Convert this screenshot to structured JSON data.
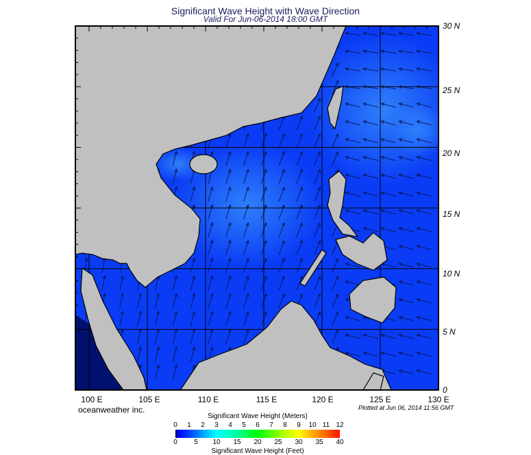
{
  "header": {
    "title": "Significant Wave Height with Wave Direction",
    "subtitle": "Valid For Jun-06-2014 18:00 GMT"
  },
  "map": {
    "lat_labels": [
      "30 N",
      "25 N",
      "20 N",
      "15 N",
      "10 N",
      "5 N",
      "0"
    ],
    "lon_labels": [
      "100 E",
      "105 E",
      "110 E",
      "115 E",
      "120 E",
      "125 E",
      "130 E"
    ],
    "colors": {
      "land": "#c0c0c0",
      "ocean": "#0a3cf5",
      "ocean_light": "#2a78fa",
      "arrow": "#0a1450"
    }
  },
  "footer": {
    "credit": "oceanweather inc.",
    "plotted": "Plotted at Jun 06, 2014 11:56 GMT"
  },
  "colorbar": {
    "title_meters": "Significant Wave Height (Meters)",
    "ticks_meters": [
      "0",
      "1",
      "2",
      "3",
      "4",
      "5",
      "6",
      "7",
      "8",
      "9",
      "10",
      "11",
      "12"
    ],
    "ticks_feet": [
      "0",
      "5",
      "10",
      "15",
      "20",
      "25",
      "30",
      "35",
      "40"
    ],
    "title_feet": "Significant Wave Height (Feet)"
  }
}
